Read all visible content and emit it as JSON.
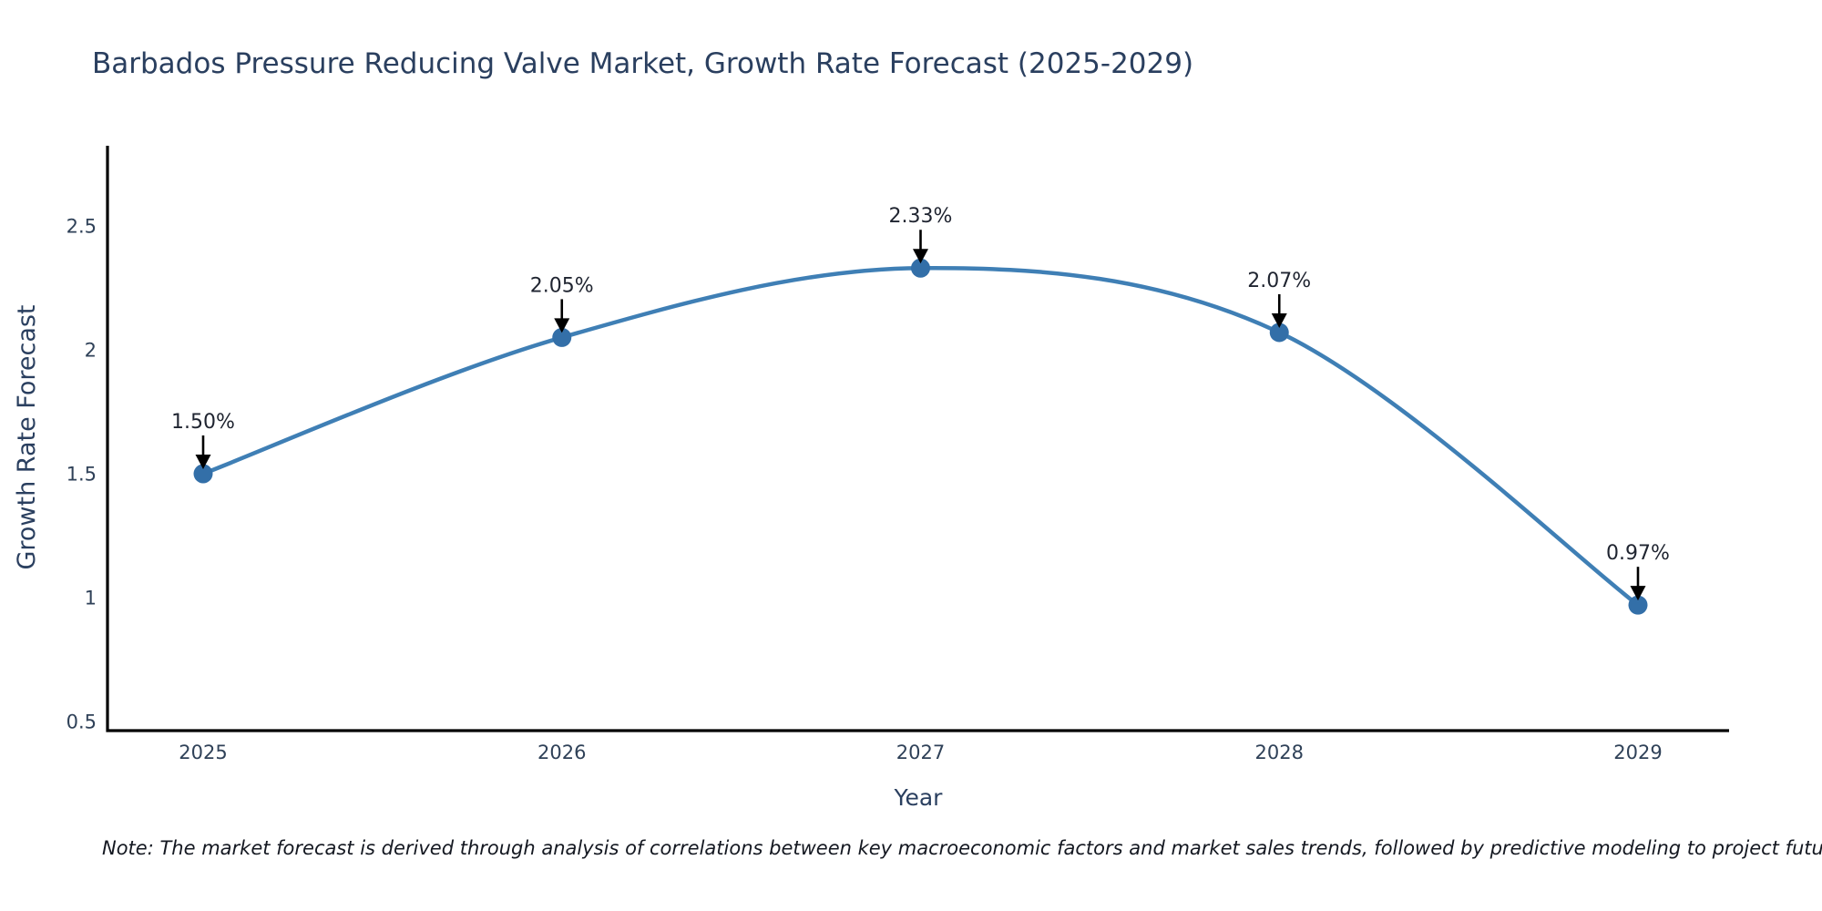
{
  "title": "Barbados Pressure Reducing Valve Market, Growth Rate Forecast (2025-2029)",
  "note": "Note: The market forecast is derived through analysis of correlations between key macroeconomic factors and market sales trends, followed by predictive modeling to project future sales",
  "chart_data": {
    "type": "line",
    "line_shape": "spline",
    "x": [
      2025,
      2026,
      2027,
      2028,
      2029
    ],
    "series": [
      {
        "name": "Growth Rate Forecast",
        "values": [
          1.5,
          2.05,
          2.33,
          2.07,
          0.97
        ]
      }
    ],
    "point_labels": [
      "1.50%",
      "2.05%",
      "2.33%",
      "2.07%",
      "0.97%"
    ],
    "title": "Barbados Pressure Reducing Valve Market, Growth Rate Forecast (2025-2029)",
    "xlabel": "Year",
    "ylabel": "Growth Rate Forecast",
    "x_ticks": [
      "2025",
      "2026",
      "2027",
      "2028",
      "2029"
    ],
    "y_ticks": [
      0.5,
      1,
      1.5,
      2,
      2.5
    ],
    "ylim": [
      0.46,
      2.82
    ],
    "xlim": [
      2024.73,
      2029.25
    ],
    "grid": false,
    "legend": "none",
    "markers": true,
    "annotation_arrows": true,
    "colors": {
      "line": "#3f7fb5",
      "marker": "#336fa8",
      "axis_line": "#000000",
      "title_text": "#2a3f5f",
      "axis_title_text": "#2a3f5f",
      "tick_text": "#2f4158",
      "annotation_text": "#1f2430",
      "arrow": "#000000",
      "note_text": "#141821",
      "background": "#ffffff"
    }
  }
}
